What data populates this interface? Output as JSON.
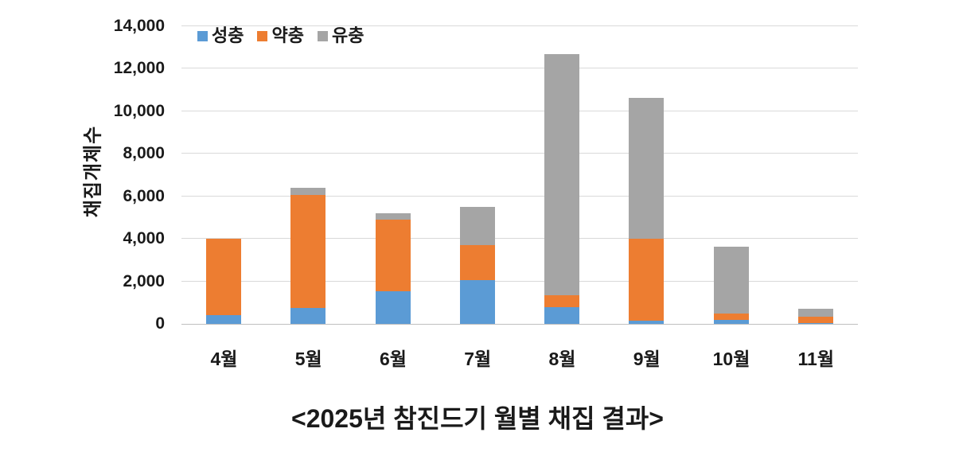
{
  "chart_data": {
    "type": "bar",
    "stacked": true,
    "categories": [
      "4월",
      "5월",
      "6월",
      "7월",
      "8월",
      "9월",
      "10월",
      "11월"
    ],
    "series": [
      {
        "name": "성충",
        "color": "#5B9BD5",
        "values": [
          400,
          750,
          1550,
          2050,
          800,
          150,
          200,
          50
        ]
      },
      {
        "name": "약충",
        "color": "#ED7D31",
        "values": [
          3600,
          5300,
          3350,
          1650,
          550,
          3850,
          300,
          300
        ]
      },
      {
        "name": "유충",
        "color": "#A5A5A5",
        "values": [
          0,
          350,
          300,
          1800,
          11350,
          6650,
          3150,
          350
        ]
      }
    ],
    "totals": [
      4000,
      6400,
      5200,
      5500,
      12700,
      10650,
      3650,
      700
    ],
    "title": "<2025년 참진드기 월별 채집 결과>",
    "xlabel": "",
    "ylabel": "채집개체수",
    "ylim": [
      0,
      14000
    ],
    "ytick_step": 2000,
    "ytick_labels": [
      "0",
      "2,000",
      "4,000",
      "6,000",
      "8,000",
      "10,000",
      "12,000",
      "14,000"
    ],
    "legend_position": "top-left-inside",
    "grid": true,
    "gridline_color": "#D9D9D9",
    "axisline_color": "#BFBFBF",
    "text_color": "#1A1A1A",
    "background_color": "#FFFFFF"
  }
}
